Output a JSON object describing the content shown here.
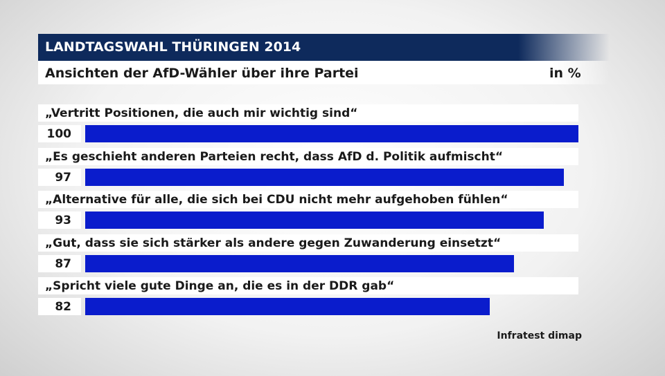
{
  "header": {
    "title": "LANDTAGSWAHL THÜRINGEN 2014",
    "subtitle": "Ansichten der AfD-Wähler über ihre Partei",
    "unit": "in %"
  },
  "source": "Infratest dimap",
  "colors": {
    "header_bg": "#0e2a5c",
    "bar": "#0a1ccc"
  },
  "chart_data": {
    "type": "bar",
    "orientation": "horizontal",
    "title": "Ansichten der AfD-Wähler über ihre Partei",
    "unit": "in %",
    "xlim": [
      0,
      100
    ],
    "grid": false,
    "categories": [
      "„Vertritt Positionen, die auch mir wichtig sind“",
      "„Es geschieht anderen Parteien recht, dass AfD d. Politik aufmischt“",
      "„Alternative für alle, die sich bei CDU nicht mehr aufgehoben fühlen“",
      "„Gut, dass sie sich stärker als andere gegen Zuwanderung einsetzt“",
      "„Spricht viele gute Dinge an, die es in der DDR gab“"
    ],
    "values": [
      100,
      97,
      93,
      87,
      82
    ]
  }
}
